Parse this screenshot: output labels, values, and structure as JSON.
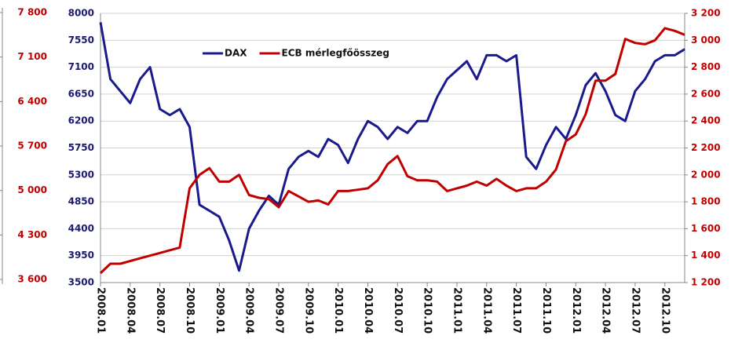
{
  "chart_data": {
    "type": "line",
    "categories": [
      "2008.01",
      null,
      null,
      "2008.04",
      null,
      null,
      "2008.07",
      null,
      null,
      "2008.10",
      null,
      null,
      "2009.01",
      null,
      null,
      "2009.04",
      null,
      null,
      "2009.07",
      null,
      null,
      "2009.10",
      null,
      null,
      "2010.01",
      null,
      null,
      "2010.04",
      null,
      null,
      "2010.07",
      null,
      null,
      "2010.10",
      null,
      null,
      "2011.01",
      null,
      null,
      "2011.04",
      null,
      null,
      "2011.07",
      null,
      null,
      "2011.10",
      null,
      null,
      "2012.01",
      null,
      null,
      "2012.04",
      null,
      null,
      "2012.07",
      null,
      null,
      "2012.10",
      null,
      null
    ],
    "series": [
      {
        "name": "DAX",
        "color": "#1a1a8c",
        "values": [
          7850,
          6900,
          6700,
          6500,
          6900,
          7100,
          6400,
          6300,
          6400,
          6100,
          4800,
          4700,
          4600,
          4200,
          3700,
          4400,
          4700,
          4950,
          4800,
          5400,
          5600,
          5700,
          5600,
          5900,
          5800,
          5500,
          5900,
          6200,
          6100,
          5900,
          6100,
          6000,
          6200,
          6200,
          6600,
          6900,
          7050,
          7200,
          6900,
          7300,
          7300,
          7200,
          7300,
          5600,
          5400,
          5800,
          6100,
          5900,
          6300,
          6800,
          7000,
          6700,
          6300,
          6200,
          6700,
          6900,
          7200,
          7300,
          7300,
          7400
        ]
      },
      {
        "name": "ECB mérlegfőösszeg",
        "color": "#c00000",
        "axis": "y2",
        "values": [
          1270,
          1340,
          1340,
          1360,
          1380,
          1400,
          1420,
          1440,
          1460,
          1900,
          2000,
          2050,
          1950,
          1950,
          2000,
          1850,
          1830,
          1820,
          1760,
          1880,
          1840,
          1800,
          1810,
          1780,
          1880,
          1880,
          1890,
          1900,
          1960,
          2080,
          2140,
          1990,
          1960,
          1960,
          1950,
          1880,
          1900,
          1920,
          1950,
          1920,
          1970,
          1920,
          1880,
          1900,
          1900,
          1950,
          2040,
          2250,
          2300,
          2450,
          2700,
          2700,
          2750,
          3010,
          2980,
          2970,
          3000,
          3090,
          3070,
          3040
        ]
      }
    ],
    "ylim": [
      3500,
      8000
    ],
    "yticks": [
      3500,
      3950,
      4400,
      4850,
      5300,
      5750,
      6200,
      6650,
      7100,
      7550,
      8000
    ],
    "y2lim": [
      1200,
      3200
    ],
    "y2ticks": [
      {
        "value": 1200,
        "label": "1 200"
      },
      {
        "value": 1400,
        "label": "1 400"
      },
      {
        "value": 1600,
        "label": "1 600"
      },
      {
        "value": 1800,
        "label": "1 800"
      },
      {
        "value": 2000,
        "label": "2 000"
      },
      {
        "value": 2200,
        "label": "2 200"
      },
      {
        "value": 2400,
        "label": "2 400"
      },
      {
        "value": 2600,
        "label": "2 600"
      },
      {
        "value": 2800,
        "label": "2 800"
      },
      {
        "value": 3000,
        "label": "3 000"
      },
      {
        "value": 3200,
        "label": "3 200"
      }
    ],
    "side_ticks": [
      {
        "value": 3600,
        "label": "3 600"
      },
      {
        "value": 4300,
        "label": "4 300"
      },
      {
        "value": 5000,
        "label": "5 000"
      },
      {
        "value": 5700,
        "label": "5 700"
      },
      {
        "value": 6400,
        "label": "6 400"
      },
      {
        "value": 7100,
        "label": "7 100"
      },
      {
        "value": 7800,
        "label": "7 800"
      }
    ],
    "side_lim": [
      3600,
      7800
    ],
    "grid": true,
    "legend": "top"
  }
}
